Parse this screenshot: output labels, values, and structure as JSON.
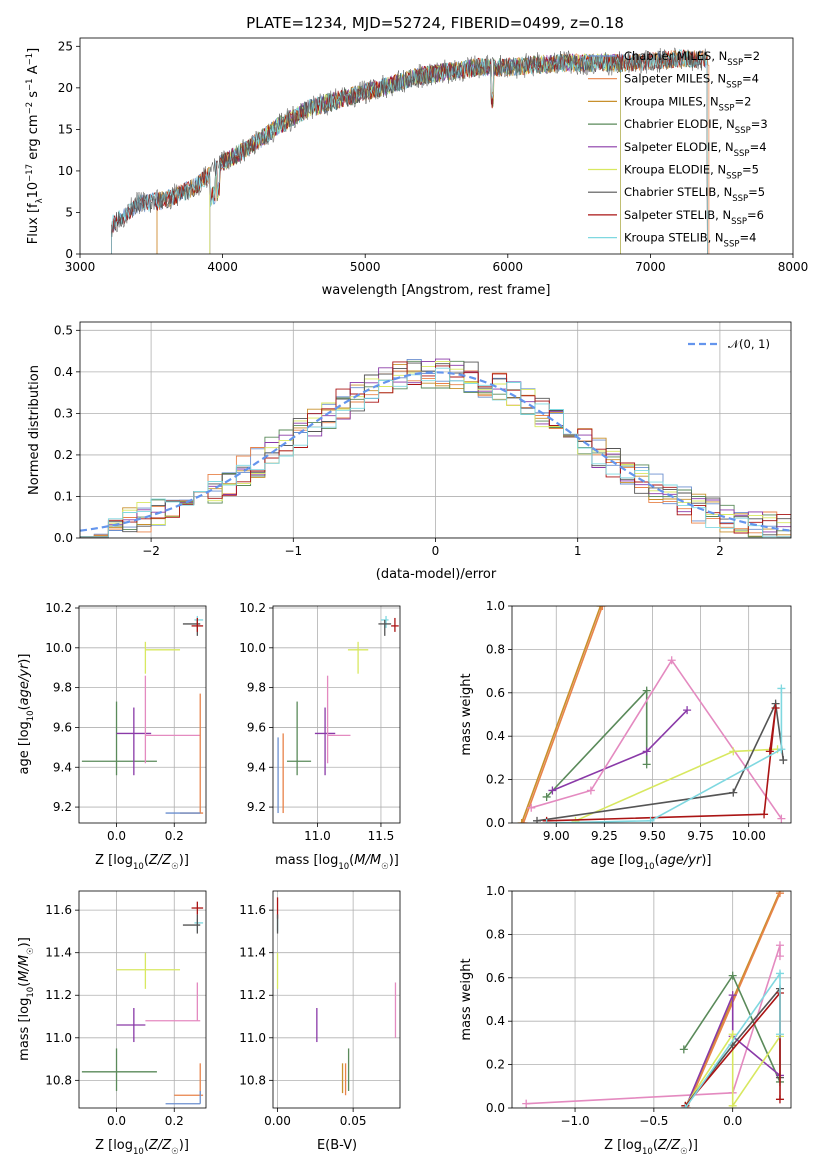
{
  "title": "PLATE=1234, MJD=52724, FIBERID=0499, z=0.18",
  "colors": {
    "Chabrier MILES": "#6b8fcf",
    "Salpeter MILES": "#e8834a",
    "Kroupa MILES": "#c8902c",
    "Chabrier ELODIE": "#5a8a5a",
    "Salpeter ELODIE": "#8a3aa8",
    "Kroupa ELODIE": "#d8e860",
    "Chabrier STELIB": "#555555",
    "Salpeter STELIB": "#aa1414",
    "Kroupa STELIB": "#7fd8e0",
    "pink": "#e48ac0",
    "normal": "#6495ed"
  },
  "chart_data": [
    {
      "id": "spectrum",
      "type": "line",
      "xlabel": "wavelength [Angstrom, rest frame]",
      "ylabel": "Flux [f_λ10^-17 erg cm^-2 s^-1 A^-1]",
      "xlim": [
        3000,
        8000
      ],
      "ylim": [
        0,
        26
      ],
      "xticks": [
        "3000",
        "4000",
        "5000",
        "6000",
        "7000",
        "8000"
      ],
      "yticks": [
        "0",
        "5",
        "10",
        "15",
        "20",
        "25"
      ],
      "grid": false,
      "legend": "upper right",
      "series": [
        {
          "name": "Chabrier MILES, N_SSP=2",
          "label": "Chabrier MILES, N",
          "sub": "SSP",
          "tail": "=2",
          "x_range": [
            3220,
            7400
          ]
        },
        {
          "name": "Salpeter MILES, N_SSP=4",
          "label": "Salpeter MILES, N",
          "sub": "SSP",
          "tail": "=4",
          "x_range": [
            3540,
            7410
          ]
        },
        {
          "name": "Kroupa MILES, N_SSP=2",
          "label": "Kroupa MILES, N",
          "sub": "SSP",
          "tail": "=2",
          "x_range": [
            3540,
            7400
          ]
        },
        {
          "name": "Chabrier ELODIE, N_SSP=3",
          "label": "Chabrier ELODIE, N",
          "sub": "SSP",
          "tail": "=3",
          "x_range": [
            3910,
            6790
          ]
        },
        {
          "name": "Salpeter ELODIE, N_SSP=4",
          "label": "Salpeter ELODIE, N",
          "sub": "SSP",
          "tail": "=4",
          "x_range": [
            3910,
            6790
          ]
        },
        {
          "name": "Kroupa ELODIE, N_SSP=5",
          "label": "Kroupa ELODIE, N",
          "sub": "SSP",
          "tail": "=5",
          "x_range": [
            3910,
            6790
          ]
        },
        {
          "name": "Chabrier STELIB, N_SSP=5",
          "label": "Chabrier STELIB, N",
          "sub": "SSP",
          "tail": "=5",
          "x_range": [
            3220,
            7400
          ]
        },
        {
          "name": "Salpeter STELIB, N_SSP=6",
          "label": "Salpeter STELIB, N",
          "sub": "SSP",
          "tail": "=6",
          "x_range": [
            3220,
            7400
          ]
        },
        {
          "name": "Kroupa STELIB, N_SSP=4",
          "label": "Kroupa STELIB, N",
          "sub": "SSP",
          "tail": "=4",
          "x_range": [
            3220,
            7400
          ]
        }
      ],
      "data_curve": {
        "x": [
          3220,
          3400,
          3600,
          3800,
          4000,
          4200,
          4400,
          4600,
          4800,
          5000,
          5200,
          5400,
          5600,
          5800,
          6000,
          6200,
          6400,
          6600,
          6800,
          7000,
          7200,
          7400
        ],
        "y": [
          3.5,
          6,
          6.5,
          8,
          11,
          13,
          15.5,
          17.5,
          18.5,
          19.5,
          20.5,
          21.5,
          22,
          22.5,
          22.5,
          22.8,
          23,
          23,
          23,
          23.2,
          23.5,
          23.5
        ]
      }
    },
    {
      "id": "residuals",
      "type": "histogram",
      "xlabel": "(data-model)/error",
      "ylabel": "Normed distribution",
      "xlim": [
        -2.5,
        2.5
      ],
      "ylim": [
        0,
        0.52
      ],
      "xticks": [
        "−2",
        "−1",
        "0",
        "1",
        "2"
      ],
      "yticks": [
        "0.0",
        "0.1",
        "0.2",
        "0.3",
        "0.4",
        "0.5"
      ],
      "grid": true,
      "legend": "upper right",
      "legend_label": "𝒩(0, 1)",
      "bin_width": 0.1
    },
    {
      "id": "age_vs_Z",
      "type": "scatter_errorbars",
      "xlabel": "Z [log10(Z/Z☉)]",
      "ylabel": "age [log10(age/yr)]",
      "xlim": [
        -0.13,
        0.31
      ],
      "ylim": [
        9.12,
        10.21
      ],
      "xticks": [
        "0.0",
        "0.2"
      ],
      "yticks": [
        "9.2",
        "9.4",
        "9.6",
        "9.8",
        "10.0",
        "10.2"
      ],
      "points": [
        {
          "c": "Kroupa ELODIE",
          "x": 0.1,
          "y": 9.99,
          "xe": [
            0.1,
            0.22
          ],
          "ye": [
            9.87,
            10.03
          ]
        },
        {
          "c": "Chabrier ELODIE",
          "x": 0.0,
          "y": 9.43,
          "xe": [
            -0.12,
            0.14
          ],
          "ye": [
            9.36,
            9.73
          ]
        },
        {
          "c": "Salpeter ELODIE",
          "x": 0.06,
          "y": 9.57,
          "xe": [
            0.0,
            0.12
          ],
          "ye": [
            9.36,
            9.7
          ]
        },
        {
          "c": "pink",
          "x": 0.1,
          "y": 9.56,
          "xe": [
            0.1,
            0.29
          ],
          "ye": [
            9.42,
            9.86
          ]
        },
        {
          "c": "Salpeter MILES",
          "x": 0.29,
          "y": 9.17,
          "xe": [
            0.22,
            0.3
          ],
          "ye": [
            9.17,
            9.77
          ]
        },
        {
          "c": "Chabrier MILES",
          "x": 0.28,
          "y": 9.17,
          "xe": [
            0.17,
            0.29
          ],
          "ye": [
            9.17,
            9.17
          ]
        },
        {
          "c": "Kroupa STELIB",
          "x": 0.28,
          "y": 10.14,
          "xe": [
            0.27,
            0.3
          ],
          "ye": [
            10.1,
            10.16
          ]
        },
        {
          "c": "Chabrier STELIB",
          "x": 0.28,
          "y": 10.12,
          "xe": [
            0.23,
            0.29
          ],
          "ye": [
            10.06,
            10.14
          ]
        },
        {
          "c": "Salpeter STELIB",
          "x": 0.28,
          "y": 10.11,
          "xe": [
            0.26,
            0.3
          ],
          "ye": [
            10.08,
            10.15
          ]
        }
      ]
    },
    {
      "id": "age_vs_mass",
      "type": "scatter_errorbars",
      "xlabel": "mass [log10(M/M☉)]",
      "ylabel": "",
      "xlim": [
        10.65,
        11.65
      ],
      "ylim": [
        9.12,
        10.21
      ],
      "xticks": [
        "11.0",
        "11.5"
      ],
      "yticks": [
        "9.2",
        "9.4",
        "9.6",
        "9.8",
        "10.0",
        "10.2"
      ],
      "points": [
        {
          "c": "Kroupa ELODIE",
          "x": 11.32,
          "y": 9.99,
          "xe": [
            11.24,
            11.4
          ],
          "ye": [
            9.87,
            10.03
          ]
        },
        {
          "c": "Chabrier ELODIE",
          "x": 10.84,
          "y": 9.43,
          "xe": [
            10.76,
            10.95
          ],
          "ye": [
            9.36,
            9.73
          ]
        },
        {
          "c": "Salpeter ELODIE",
          "x": 11.06,
          "y": 9.57,
          "xe": [
            10.98,
            11.14
          ],
          "ye": [
            9.36,
            9.7
          ]
        },
        {
          "c": "pink",
          "x": 11.08,
          "y": 9.56,
          "xe": [
            11.08,
            11.26
          ],
          "ye": [
            9.42,
            9.86
          ]
        },
        {
          "c": "Salpeter MILES",
          "x": 10.73,
          "y": 9.17,
          "xe": [
            10.73,
            10.73
          ],
          "ye": [
            9.17,
            9.57
          ]
        },
        {
          "c": "Chabrier MILES",
          "x": 10.69,
          "y": 9.17,
          "xe": [
            10.69,
            10.69
          ],
          "ye": [
            9.17,
            9.55
          ]
        },
        {
          "c": "Kroupa STELIB",
          "x": 11.54,
          "y": 10.14,
          "xe": [
            11.5,
            11.56
          ],
          "ye": [
            10.1,
            10.16
          ]
        },
        {
          "c": "Chabrier STELIB",
          "x": 11.53,
          "y": 10.12,
          "xe": [
            11.48,
            11.58
          ],
          "ye": [
            10.06,
            10.14
          ]
        },
        {
          "c": "Salpeter STELIB",
          "x": 11.61,
          "y": 10.11,
          "xe": [
            11.58,
            11.64
          ],
          "ye": [
            10.08,
            10.15
          ]
        }
      ]
    },
    {
      "id": "weight_vs_age",
      "type": "line",
      "xlabel": "age [log10(age/yr)]",
      "ylabel": "mass weight",
      "xlim": [
        8.77,
        10.22
      ],
      "ylim": [
        0,
        1.0
      ],
      "xticks": [
        "9.00",
        "9.25",
        "9.50",
        "9.75",
        "10.00"
      ],
      "yticks": [
        "0.0",
        "0.2",
        "0.4",
        "0.6",
        "0.8",
        "1.0"
      ],
      "series": [
        {
          "c": "Kroupa MILES",
          "x": [
            8.82,
            9.23
          ],
          "y": [
            0.0,
            1.0
          ]
        },
        {
          "c": "Salpeter MILES",
          "x": [
            8.83,
            9.24
          ],
          "y": [
            0.0,
            1.0
          ]
        },
        {
          "c": "Chabrier ELODIE",
          "x": [
            8.95,
            9.47,
            9.47
          ],
          "y": [
            0.12,
            0.61,
            0.27
          ]
        },
        {
          "c": "Salpeter ELODIE",
          "x": [
            8.98,
            9.47,
            9.68
          ],
          "y": [
            0.15,
            0.33,
            0.52
          ]
        },
        {
          "c": "pink",
          "x": [
            8.87,
            9.18,
            9.6,
            10.17
          ],
          "y": [
            0.07,
            0.15,
            0.75,
            0.02
          ]
        },
        {
          "c": "Kroupa ELODIE",
          "x": [
            9.1,
            9.92,
            10.15
          ],
          "y": [
            0.01,
            0.33,
            0.34
          ]
        },
        {
          "c": "Chabrier STELIB",
          "x": [
            8.9,
            9.92,
            10.14,
            10.18
          ],
          "y": [
            0.01,
            0.14,
            0.55,
            0.29
          ]
        },
        {
          "c": "Salpeter STELIB",
          "x": [
            8.95,
            10.08,
            10.14,
            10.11
          ],
          "y": [
            0.01,
            0.04,
            0.53,
            0.33
          ]
        },
        {
          "c": "Kroupa STELIB",
          "x": [
            8.95,
            9.49,
            10.17,
            10.17
          ],
          "y": [
            0.0,
            0.01,
            0.34,
            0.62
          ]
        }
      ]
    },
    {
      "id": "mass_vs_Z",
      "type": "scatter_errorbars",
      "xlabel": "Z [log10(Z/Z☉)]",
      "ylabel": "mass [log10(M/M☉)]",
      "xlim": [
        -0.13,
        0.31
      ],
      "ylim": [
        10.67,
        11.69
      ],
      "xticks": [
        "0.0",
        "0.2"
      ],
      "yticks": [
        "10.8",
        "11.0",
        "11.2",
        "11.4",
        "11.6"
      ],
      "points": [
        {
          "c": "Kroupa ELODIE",
          "x": 0.1,
          "y": 11.32,
          "xe": [
            0.0,
            0.22
          ],
          "ye": [
            11.23,
            11.4
          ]
        },
        {
          "c": "Salpeter ELODIE",
          "x": 0.06,
          "y": 11.06,
          "xe": [
            0.0,
            0.1
          ],
          "ye": [
            10.98,
            11.14
          ]
        },
        {
          "c": "pink",
          "x": 0.28,
          "y": 11.08,
          "xe": [
            0.1,
            0.29
          ],
          "ye": [
            11.08,
            11.26
          ]
        },
        {
          "c": "Chabrier ELODIE",
          "x": 0.0,
          "y": 10.84,
          "xe": [
            -0.12,
            0.14
          ],
          "ye": [
            10.75,
            10.95
          ]
        },
        {
          "c": "Salpeter MILES",
          "x": 0.29,
          "y": 10.73,
          "xe": [
            0.2,
            0.3
          ],
          "ye": [
            10.73,
            10.88
          ]
        },
        {
          "c": "Chabrier MILES",
          "x": 0.29,
          "y": 10.69,
          "xe": [
            0.17,
            0.29
          ],
          "ye": [
            10.69,
            10.75
          ]
        },
        {
          "c": "Kroupa STELIB",
          "x": 0.28,
          "y": 11.54,
          "xe": [
            0.27,
            0.3
          ],
          "ye": [
            11.5,
            11.56
          ]
        },
        {
          "c": "Chabrier STELIB",
          "x": 0.28,
          "y": 11.53,
          "xe": [
            0.23,
            0.29
          ],
          "ye": [
            11.49,
            11.58
          ]
        },
        {
          "c": "Salpeter STELIB",
          "x": 0.28,
          "y": 11.61,
          "xe": [
            0.26,
            0.3
          ],
          "ye": [
            11.58,
            11.64
          ]
        }
      ]
    },
    {
      "id": "mass_vs_EBV",
      "type": "scatter_errorbars",
      "xlabel": "E(B-V)",
      "ylabel": "",
      "xlim": [
        -0.003,
        0.081
      ],
      "ylim": [
        10.67,
        11.69
      ],
      "xticks": [
        "0.00",
        "0.05"
      ],
      "yticks": [
        "10.8",
        "11.0",
        "11.2",
        "11.4",
        "11.6"
      ],
      "points": [
        {
          "c": "Kroupa ELODIE",
          "x": 0.0,
          "y": 11.32,
          "xe": [
            0.0,
            0.0
          ],
          "ye": [
            11.23,
            11.4
          ]
        },
        {
          "c": "Salpeter ELODIE",
          "x": 0.026,
          "y": 11.06,
          "xe": [
            0.026,
            0.026
          ],
          "ye": [
            10.98,
            11.14
          ]
        },
        {
          "c": "pink",
          "x": 0.078,
          "y": 11.08,
          "xe": [
            0.078,
            0.078
          ],
          "ye": [
            11.0,
            11.26
          ]
        },
        {
          "c": "Chabrier ELODIE",
          "x": 0.047,
          "y": 10.84,
          "xe": [
            0.047,
            0.047
          ],
          "ye": [
            10.75,
            10.95
          ]
        },
        {
          "c": "Salpeter MILES",
          "x": 0.045,
          "y": 10.79,
          "xe": [
            0.045,
            0.045
          ],
          "ye": [
            10.73,
            10.88
          ]
        },
        {
          "c": "Kroupa MILES",
          "x": 0.043,
          "y": 10.79,
          "xe": [
            0.043,
            0.043
          ],
          "ye": [
            10.74,
            10.88
          ]
        },
        {
          "c": "Kroupa STELIB",
          "x": 0.0,
          "y": 11.54,
          "xe": [
            0.0,
            0.0
          ],
          "ye": [
            11.5,
            11.56
          ]
        },
        {
          "c": "Salpeter STELIB",
          "x": 0.0,
          "y": 11.61,
          "xe": [
            0.0,
            0.0
          ],
          "ye": [
            11.56,
            11.66
          ]
        },
        {
          "c": "Chabrier STELIB",
          "x": 0.0,
          "y": 11.53,
          "xe": [
            0.0,
            0.0
          ],
          "ye": [
            11.49,
            11.58
          ]
        }
      ]
    },
    {
      "id": "weight_vs_Z",
      "type": "line",
      "xlabel": "Z [log10(Z/Z☉)]",
      "ylabel": "mass weight",
      "xlim": [
        -1.4,
        0.37
      ],
      "ylim": [
        0,
        1.0
      ],
      "xticks": [
        "−1.0",
        "−0.5",
        "0.0"
      ],
      "yticks": [
        "0.0",
        "0.2",
        "0.4",
        "0.6",
        "0.8",
        "1.0"
      ],
      "series": [
        {
          "c": "pink",
          "x": [
            -1.31,
            0.0,
            0.3,
            0.3
          ],
          "y": [
            0.02,
            0.07,
            0.75,
            0.7
          ]
        },
        {
          "c": "Kroupa MILES",
          "x": [
            -0.3,
            0.3
          ],
          "y": [
            0.0,
            1.0
          ]
        },
        {
          "c": "Salpeter MILES",
          "x": [
            -0.29,
            0.3
          ],
          "y": [
            0.0,
            0.99
          ]
        },
        {
          "c": "Chabrier ELODIE",
          "x": [
            -0.31,
            0.0,
            0.3
          ],
          "y": [
            0.27,
            0.61,
            0.12
          ]
        },
        {
          "c": "Salpeter ELODIE",
          "x": [
            -0.3,
            0.0,
            0.0,
            0.3
          ],
          "y": [
            0.0,
            0.52,
            0.33,
            0.15
          ]
        },
        {
          "c": "Kroupa ELODIE",
          "x": [
            -0.3,
            0.0,
            0.0,
            0.3
          ],
          "y": [
            0.01,
            0.34,
            0.01,
            0.33
          ]
        },
        {
          "c": "Chabrier STELIB",
          "x": [
            -0.3,
            0.0,
            0.3,
            0.3
          ],
          "y": [
            0.01,
            0.29,
            0.55,
            0.14
          ]
        },
        {
          "c": "Salpeter STELIB",
          "x": [
            -0.3,
            0.3,
            0.3
          ],
          "y": [
            0.01,
            0.53,
            0.04
          ]
        },
        {
          "c": "Kroupa STELIB",
          "x": [
            -0.3,
            0.3,
            0.3
          ],
          "y": [
            0.0,
            0.62,
            0.34
          ]
        }
      ]
    }
  ]
}
